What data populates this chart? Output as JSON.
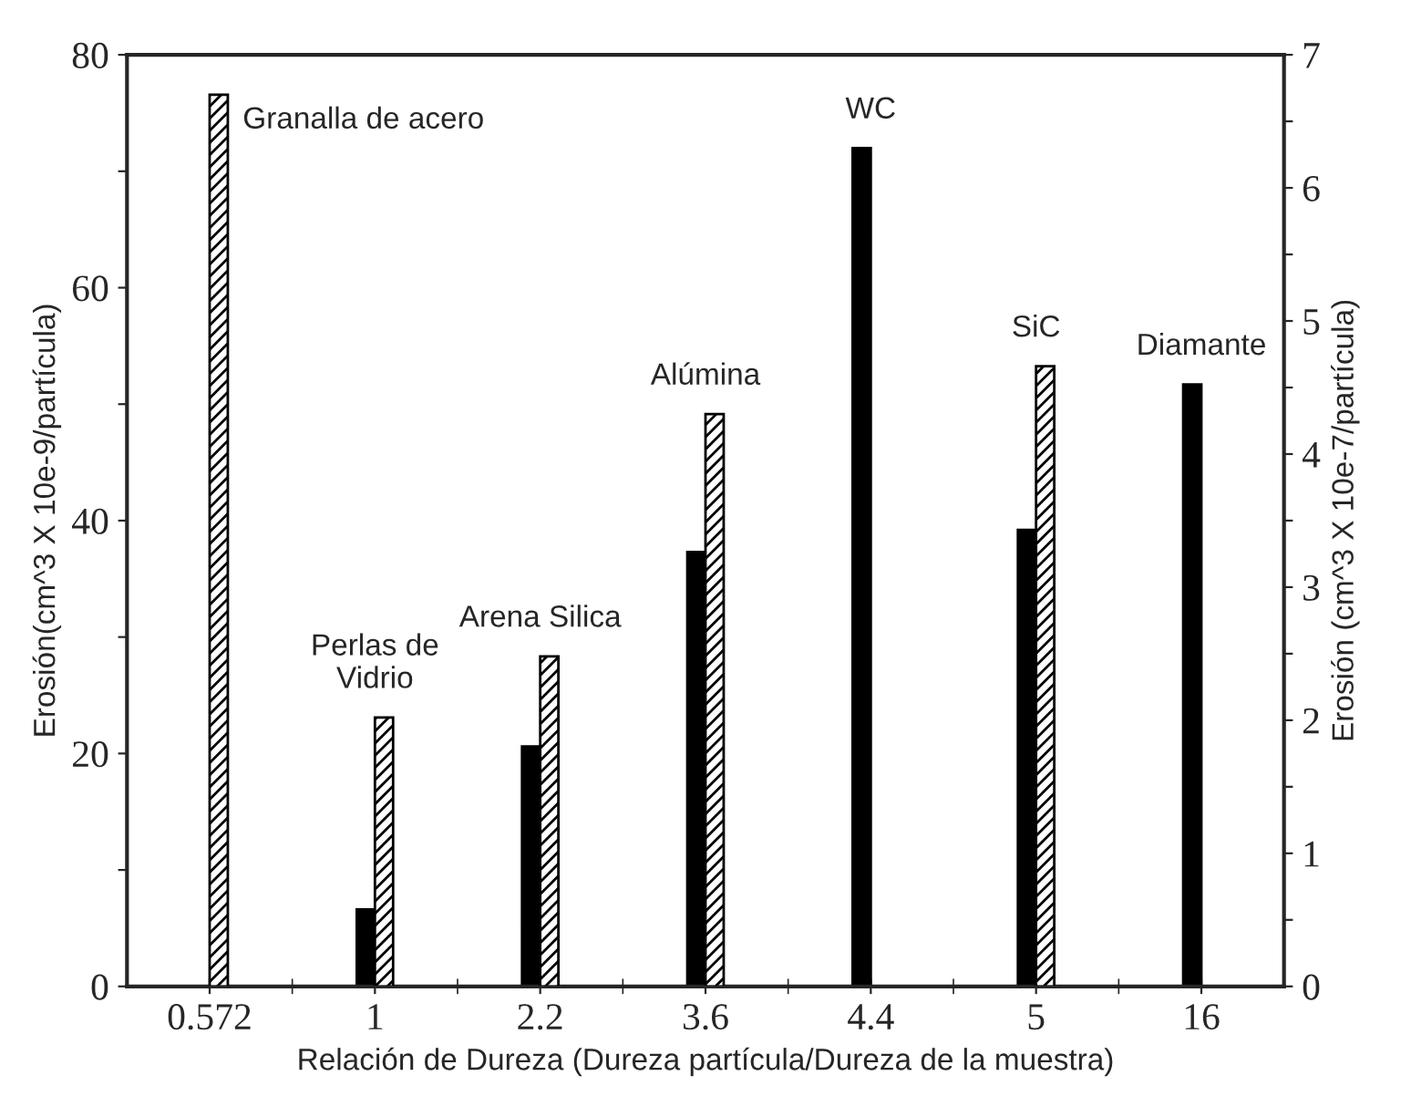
{
  "chart_data": {
    "type": "bar",
    "xlabel": "Relación de Dureza (Dureza partícula/Dureza de la muestra)",
    "ylabel": "Erosión(cm^3 X 10e-9/partícula)",
    "y2label": "Erosión (cm^3 X 10e-7/partícula)",
    "categories": [
      "0.572",
      "1",
      "2.2",
      "3.6",
      "4.4",
      "5",
      "16"
    ],
    "series": [
      {
        "color": "#000000",
        "values": [
          null,
          6.6,
          20.6,
          37.3,
          72.0,
          39.2,
          51.7
        ]
      },
      {
        "color": "#000000",
        "axis": "y2",
        "values": [
          6.7,
          2.02,
          2.48,
          4.3,
          null,
          4.66,
          null
        ]
      }
    ],
    "ylim": [
      0,
      80
    ],
    "yticks": [
      0,
      {
        "value": 10,
        "label": null
      },
      20,
      {
        "value": 30,
        "label": null
      },
      40,
      {
        "value": 50,
        "label": null
      },
      60,
      {
        "value": 70,
        "label": null
      },
      80
    ],
    "y2lim": [
      0,
      7
    ],
    "y2ticks": [
      0,
      {
        "value": 0.5,
        "label": null
      },
      1,
      {
        "value": 1.5,
        "label": null
      },
      2,
      {
        "value": 2.5,
        "label": null
      },
      3,
      {
        "value": 3.5,
        "label": null
      },
      4,
      {
        "value": 4.5,
        "label": null
      },
      5,
      {
        "value": 5.5,
        "label": null
      },
      6,
      {
        "value": 6.5,
        "label": null
      },
      7
    ],
    "annotations": [
      "Granalla de acero",
      "Perlas de\nVidrio",
      "Arena Silica",
      "Alúmina",
      "WC",
      "SiC",
      "Diamante"
    ],
    "grid": false,
    "legend": false
  }
}
